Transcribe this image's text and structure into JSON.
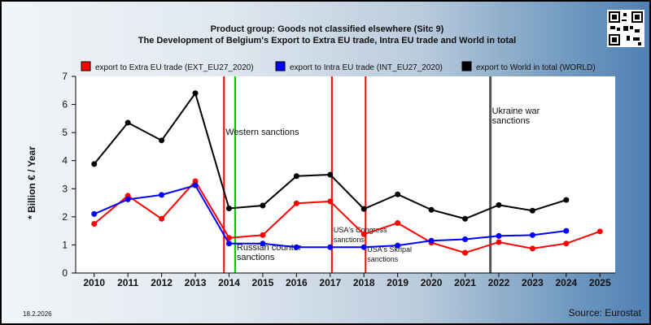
{
  "header": {
    "title_line1": "Product group: Goods not classified elsewhere (Sitc 9)",
    "title_line2": "The Development of Belgium's Export to Extra EU trade, Intra EU trade and World in total"
  },
  "footer": {
    "date": "18.2.2026",
    "source": "Source: Eurostat"
  },
  "chart_data": {
    "type": "line",
    "title": "The Development of Belgium's Export to Extra EU trade, Intra EU trade and World in total",
    "subtitle": "Product group: Goods not classified elsewhere (Sitc 9)",
    "xlabel": "",
    "ylabel": "* Billion € / Year",
    "categories": [
      "2010",
      "2011",
      "2012",
      "2013",
      "2014",
      "2015",
      "2016",
      "2017",
      "2018",
      "2019",
      "2020",
      "2021",
      "2022",
      "2023",
      "2024",
      "2025"
    ],
    "ylim": [
      0,
      7
    ],
    "yticks": [
      "0",
      "1",
      "2",
      "3",
      "4",
      "5",
      "6",
      "7"
    ],
    "grid": false,
    "legend_position": "top",
    "series": [
      {
        "name": "export to Extra EU trade (EXT_EU27_2020)",
        "color": "#ff0000",
        "values": [
          1.75,
          2.75,
          1.93,
          3.27,
          1.25,
          1.35,
          2.48,
          2.55,
          1.38,
          1.78,
          1.08,
          0.72,
          1.1,
          0.87,
          1.05,
          1.48
        ]
      },
      {
        "name": "export to Intra EU trade (INT_EU27_2020)",
        "color": "#0000ff",
        "values": [
          2.1,
          2.62,
          2.78,
          3.12,
          1.05,
          1.05,
          0.92,
          0.92,
          0.92,
          0.98,
          1.15,
          1.2,
          1.32,
          1.35,
          1.5,
          null
        ]
      },
      {
        "name": "export to World in total (WORLD)",
        "color": "#000000",
        "values": [
          3.88,
          5.35,
          4.72,
          6.4,
          2.3,
          2.4,
          3.45,
          3.5,
          2.28,
          2.8,
          2.25,
          1.93,
          2.42,
          2.22,
          2.6,
          null
        ]
      }
    ],
    "annotations": [
      {
        "label": "Western sanctions",
        "x": 2013.85,
        "color": "#ff0000"
      },
      {
        "label": "",
        "x": 2014.18,
        "color": "#00cc00"
      },
      {
        "label": "Russian counter sanctions",
        "x": 2014.18,
        "color": "#00cc00"
      },
      {
        "label": "USA's Congress sanctions",
        "x": 2017.05,
        "color": "#ff0000"
      },
      {
        "label": "USA's Skripal sanctions",
        "x": 2018.05,
        "color": "#ff0000"
      },
      {
        "label": "Ukraine war sanctions",
        "x": 2021.75,
        "color": "#555555"
      }
    ]
  }
}
